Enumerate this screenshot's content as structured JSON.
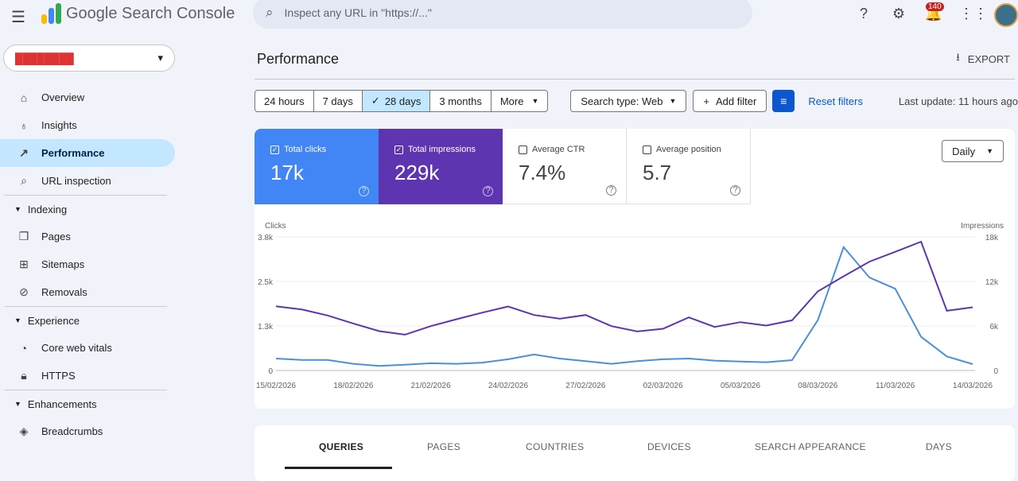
{
  "app": {
    "title": "Google Search Console",
    "search_placeholder": "Inspect any URL in \"https://...\"",
    "notifications": "140"
  },
  "property": {
    "name": "████████"
  },
  "sidebar": {
    "items": [
      {
        "label": "Overview",
        "icon": "home-icon"
      },
      {
        "label": "Insights",
        "icon": "bulb-icon"
      },
      {
        "label": "Performance",
        "icon": "trend-icon"
      },
      {
        "label": "URL inspection",
        "icon": "search-icon"
      }
    ],
    "sections": [
      {
        "label": "Indexing",
        "items": [
          {
            "label": "Pages"
          },
          {
            "label": "Sitemaps"
          },
          {
            "label": "Removals"
          }
        ]
      },
      {
        "label": "Experience",
        "items": [
          {
            "label": "Core web vitals"
          },
          {
            "label": "HTTPS"
          }
        ]
      },
      {
        "label": "Enhancements",
        "items": [
          {
            "label": "Breadcrumbs"
          }
        ]
      }
    ]
  },
  "page": {
    "title": "Performance",
    "export": "EXPORT"
  },
  "filters": {
    "ranges": [
      "24 hours",
      "7 days",
      "28 days",
      "3 months",
      "More"
    ],
    "selected": "28 days",
    "search_type": "Search type: Web",
    "add_filter": "Add filter",
    "reset": "Reset filters",
    "last_update": "Last update: 11 hours ago"
  },
  "metrics": [
    {
      "label": "Total clicks",
      "value": "17k",
      "checked": true
    },
    {
      "label": "Total impressions",
      "value": "229k",
      "checked": true
    },
    {
      "label": "Average CTR",
      "value": "7.4%",
      "checked": false
    },
    {
      "label": "Average position",
      "value": "5.7",
      "checked": false
    }
  ],
  "granularity": "Daily",
  "chart_data": {
    "type": "line",
    "x": [
      "15/02/2026",
      "16/02/2026",
      "17/02/2026",
      "18/02/2026",
      "19/02/2026",
      "20/02/2026",
      "21/02/2026",
      "22/02/2026",
      "23/02/2026",
      "24/02/2026",
      "25/02/2026",
      "26/02/2026",
      "27/02/2026",
      "28/02/2026",
      "01/03/2026",
      "02/03/2026",
      "03/03/2026",
      "04/03/2026",
      "05/03/2026",
      "06/03/2026",
      "07/03/2026",
      "08/03/2026",
      "09/03/2026",
      "10/03/2026",
      "11/03/2026",
      "12/03/2026",
      "13/03/2026",
      "14/03/2026"
    ],
    "xticks": [
      "15/02/2026",
      "18/02/2026",
      "21/02/2026",
      "24/02/2026",
      "27/02/2026",
      "02/03/2026",
      "05/03/2026",
      "08/03/2026",
      "11/03/2026",
      "14/03/2026"
    ],
    "y_left": {
      "label": "Clicks",
      "ticks": [
        "0",
        "1.3k",
        "2.5k",
        "3.8k"
      ],
      "range": [
        0,
        3800
      ]
    },
    "y_right": {
      "label": "Impressions",
      "ticks": [
        "0",
        "6k",
        "12k",
        "18k"
      ],
      "range": [
        0,
        18000
      ]
    },
    "series": [
      {
        "name": "Clicks",
        "axis": "left",
        "color": "#4a90d9",
        "values": [
          340,
          300,
          300,
          190,
          130,
          165,
          205,
          190,
          225,
          320,
          455,
          340,
          265,
          190,
          265,
          320,
          340,
          280,
          255,
          235,
          295,
          1435,
          3510,
          2645,
          2325,
          960,
          400,
          180
        ]
      },
      {
        "name": "Impressions",
        "axis": "right",
        "color": "#5e35b1",
        "values": [
          8660,
          8230,
          7410,
          6330,
          5300,
          4830,
          5980,
          6910,
          7800,
          8620,
          7480,
          6980,
          7480,
          5980,
          5260,
          5620,
          7160,
          5870,
          6510,
          6050,
          6760,
          10660,
          12700,
          14670,
          16000,
          17360,
          8050,
          8520
        ]
      }
    ]
  },
  "tabs": [
    "QUERIES",
    "PAGES",
    "COUNTRIES",
    "DEVICES",
    "SEARCH APPEARANCE",
    "DAYS"
  ]
}
